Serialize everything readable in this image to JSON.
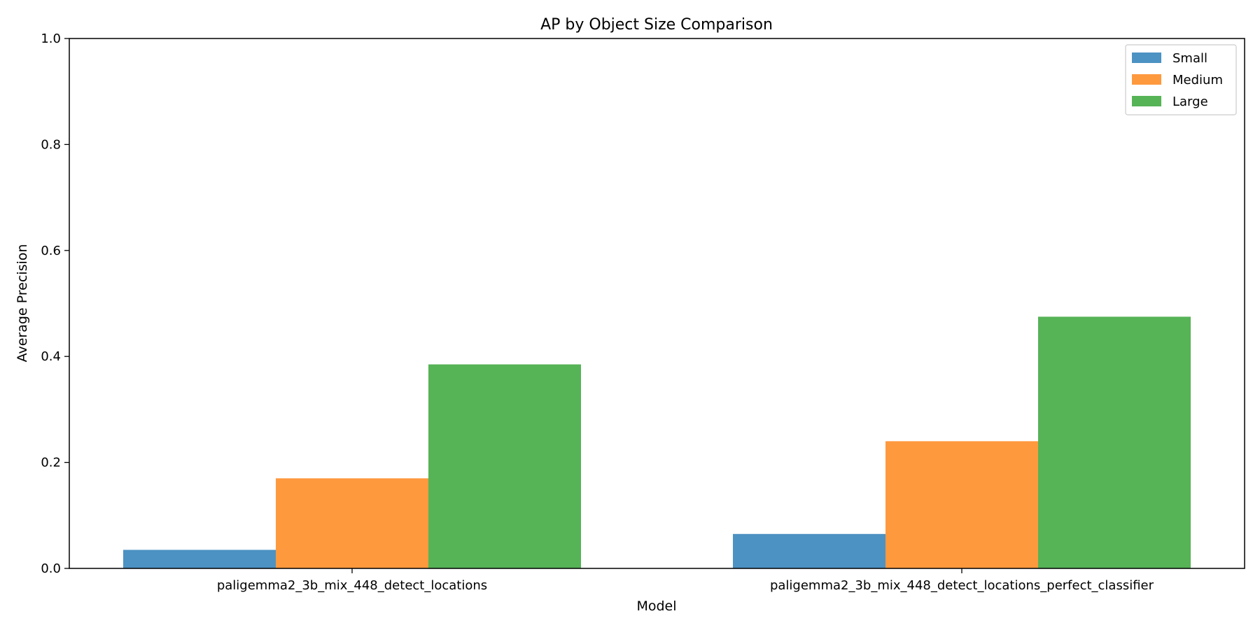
{
  "chart_data": {
    "type": "bar",
    "title": "AP by Object Size Comparison",
    "xlabel": "Model",
    "ylabel": "Average Precision",
    "categories": [
      "paligemma2_3b_mix_448_detect_locations",
      "paligemma2_3b_mix_448_detect_locations_perfect_classifier"
    ],
    "series": [
      {
        "name": "Small",
        "values": [
          0.035,
          0.065
        ],
        "color": "#4c92c3"
      },
      {
        "name": "Medium",
        "values": [
          0.17,
          0.24
        ],
        "color": "#ff993e"
      },
      {
        "name": "Large",
        "values": [
          0.385,
          0.475
        ],
        "color": "#56b356"
      }
    ],
    "ylim": [
      0,
      1.0
    ],
    "yticks": [
      "0.0",
      "0.2",
      "0.4",
      "0.6",
      "0.8",
      "1.0"
    ],
    "grid": false,
    "legend_position": "top-right"
  }
}
